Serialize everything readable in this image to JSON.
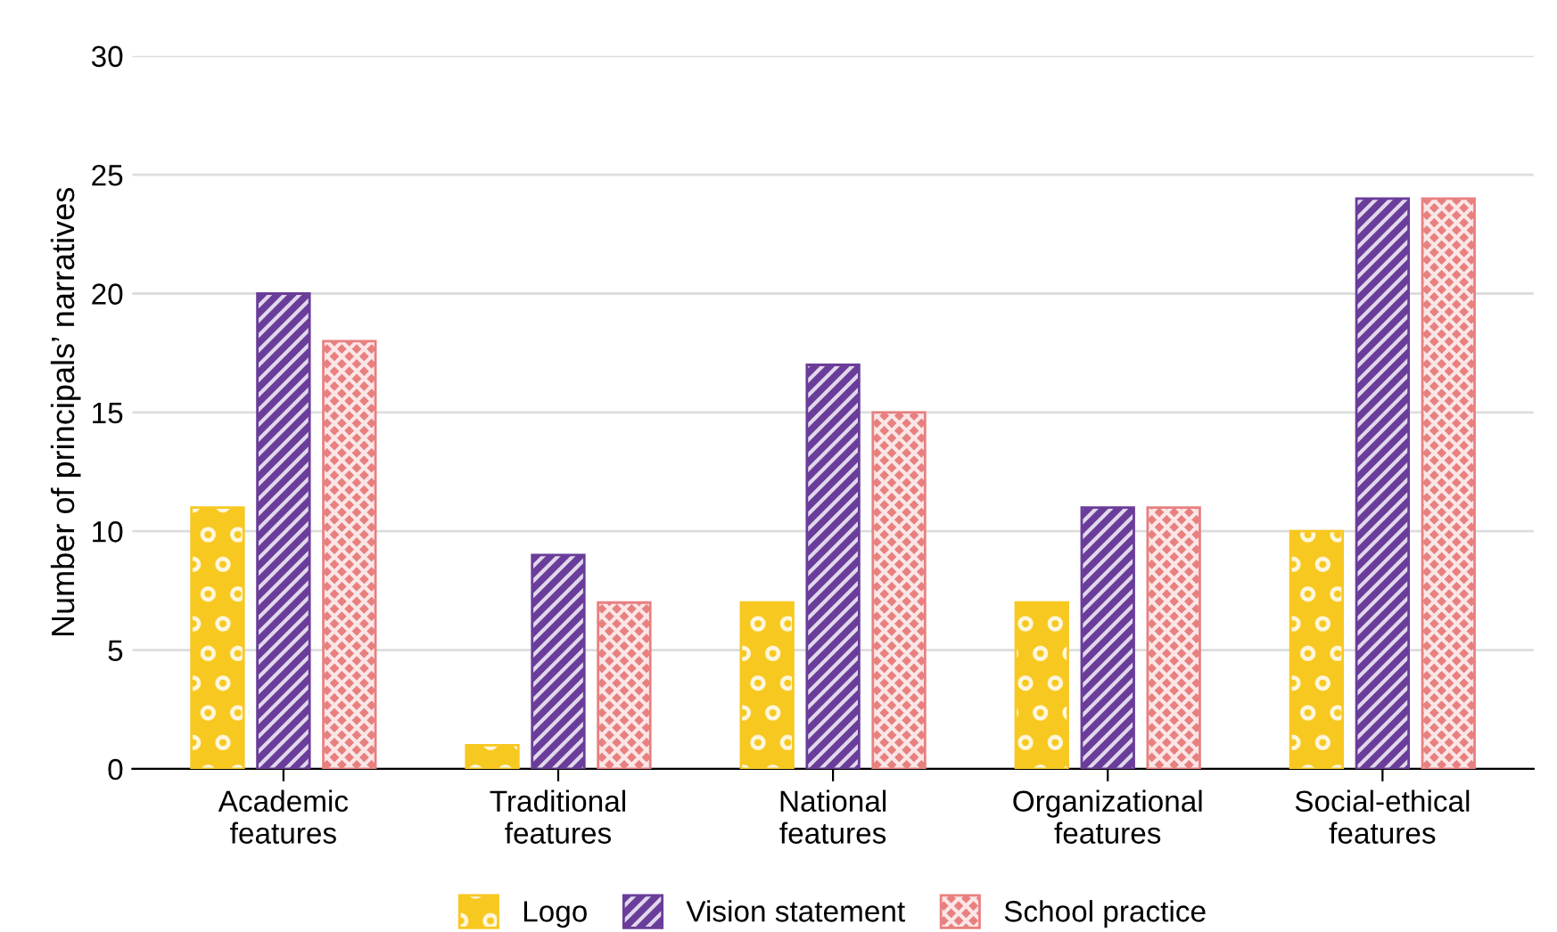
{
  "chart_data": {
    "type": "bar",
    "ylabel": "Number of principals’ narratives",
    "categories": [
      "Academic\nfeatures",
      "Traditional\nfeatures",
      "National\nfeatures",
      "Organizational\nfeatures",
      "Social-ethical\nfeatures"
    ],
    "series": [
      {
        "name": "Logo",
        "color": "#f7c820",
        "values": [
          11,
          1,
          7,
          7,
          10
        ]
      },
      {
        "name": "Vision statement",
        "color": "#6a3d9a",
        "values": [
          20,
          9,
          17,
          11,
          24
        ]
      },
      {
        "name": "School practice",
        "color": "#e88080",
        "values": [
          18,
          7,
          15,
          11,
          24
        ]
      }
    ],
    "ylim": [
      0,
      30
    ],
    "yticks": [
      0,
      5,
      10,
      15,
      20,
      25,
      30
    ],
    "grid": "y",
    "legend": "bottom"
  }
}
